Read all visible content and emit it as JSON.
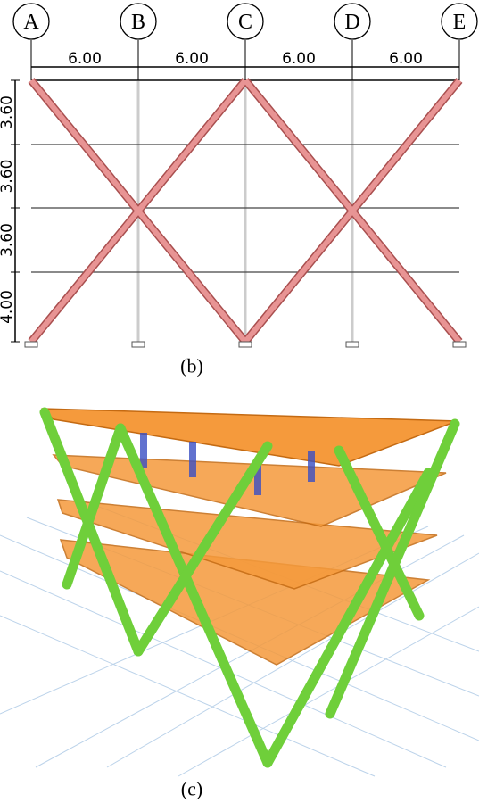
{
  "grid_labels": [
    "A",
    "B",
    "C",
    "D",
    "E"
  ],
  "bay_widths": [
    "6.00",
    "6.00",
    "6.00",
    "6.00"
  ],
  "story_heights": [
    "3.60",
    "3.60",
    "3.60",
    "4.00"
  ],
  "captions": [
    "(b)",
    "(c)"
  ]
}
